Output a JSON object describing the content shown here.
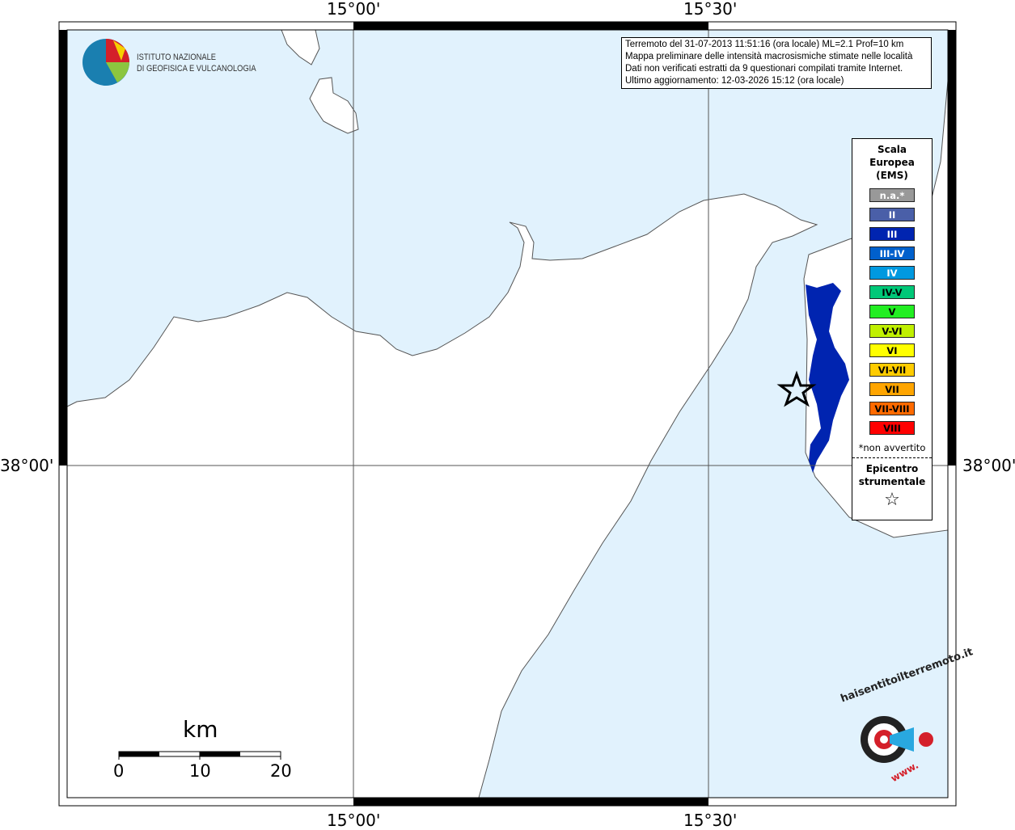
{
  "map": {
    "lon_labels": [
      "15°00'",
      "15°30'"
    ],
    "lat_labels": [
      "38°00'"
    ],
    "colors": {
      "sea": "#e1f2fd",
      "land": "#ffffff",
      "intensity_area": "#0024b0"
    }
  },
  "logo_ingv": {
    "line1": "ISTITUTO NAZIONALE",
    "line2": "DI GEOFISICA E VULCANOLOGIA"
  },
  "info": {
    "line1": "Terremoto del 31-07-2013 11:51:16 (ora locale) ML=2.1 Prof=10 km",
    "line2": "Mappa preliminare delle intensità macrosismiche stimate nelle località",
    "line3": "Dati non verificati estratti da 9 questionari compilati tramite Internet.",
    "line4": "Ultimo aggiornamento: 12-03-2026 15:12 (ora locale)"
  },
  "legend": {
    "title": "Scala Europea (EMS)",
    "items": [
      {
        "label": "n.a.*",
        "color": "#999999",
        "text": "#ffffff"
      },
      {
        "label": "II",
        "color": "#4a5fa8",
        "text": "#ffffff"
      },
      {
        "label": "III",
        "color": "#0024b0",
        "text": "#ffffff"
      },
      {
        "label": "III-IV",
        "color": "#0060cc",
        "text": "#ffffff"
      },
      {
        "label": "IV",
        "color": "#0099e0",
        "text": "#ffffff"
      },
      {
        "label": "IV-V",
        "color": "#00c878",
        "text": "#000000"
      },
      {
        "label": "V",
        "color": "#22ee22",
        "text": "#000000"
      },
      {
        "label": "V-VI",
        "color": "#c0f000",
        "text": "#000000"
      },
      {
        "label": "VI",
        "color": "#ffff00",
        "text": "#000000"
      },
      {
        "label": "VI-VII",
        "color": "#ffcc00",
        "text": "#000000"
      },
      {
        "label": "VII",
        "color": "#ffa500",
        "text": "#000000"
      },
      {
        "label": "VII-VIII",
        "color": "#ff6a00",
        "text": "#000000"
      },
      {
        "label": "VIII",
        "color": "#ff0000",
        "text": "#000000"
      }
    ],
    "note": "*non avvertito",
    "epicenter_label": "Epicentro strumentale",
    "epicenter_symbol": "☆"
  },
  "scale": {
    "unit": "km",
    "ticks": [
      "0",
      "10",
      "20"
    ]
  },
  "logo_hsit": {
    "text": "haisentitoilterremoto.it",
    "prefix": "www."
  }
}
